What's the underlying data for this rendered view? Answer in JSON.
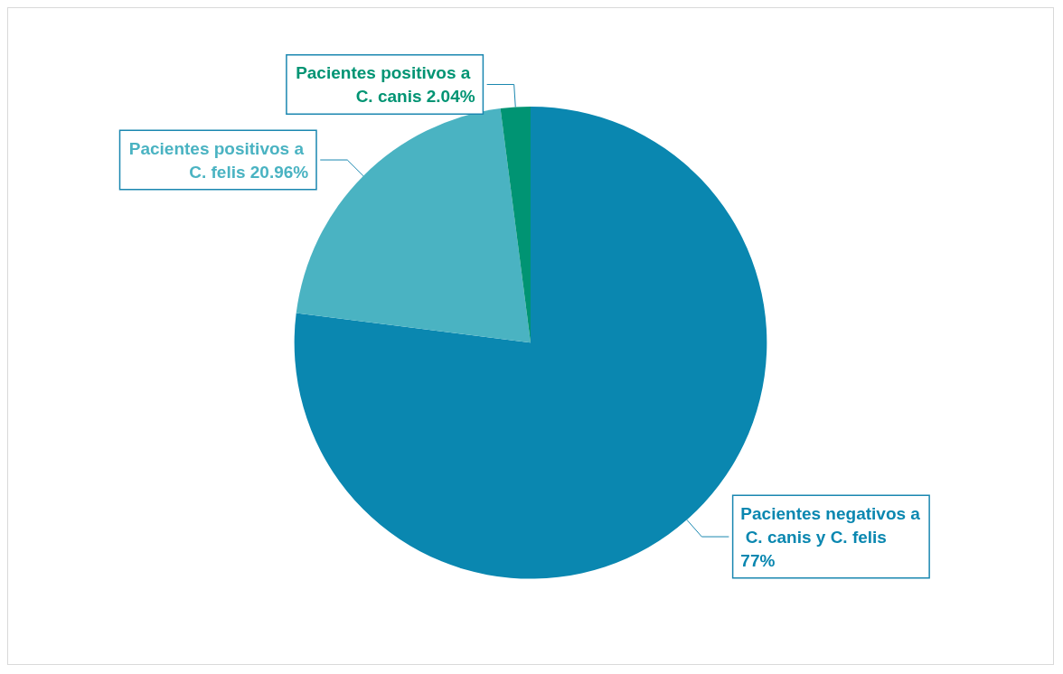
{
  "chart_data": {
    "type": "pie",
    "categories": [
      "Pacientes negativos a C. canis y C. felis",
      "Pacientes positivos a C. felis",
      "Pacientes positivos a C. canis"
    ],
    "values": [
      77,
      20.96,
      2.04
    ],
    "colors": [
      "#0a87b0",
      "#4ab3c2",
      "#009473"
    ],
    "value_labels": [
      "77%",
      "20.96%",
      "2.04%"
    ],
    "legend": false
  }
}
